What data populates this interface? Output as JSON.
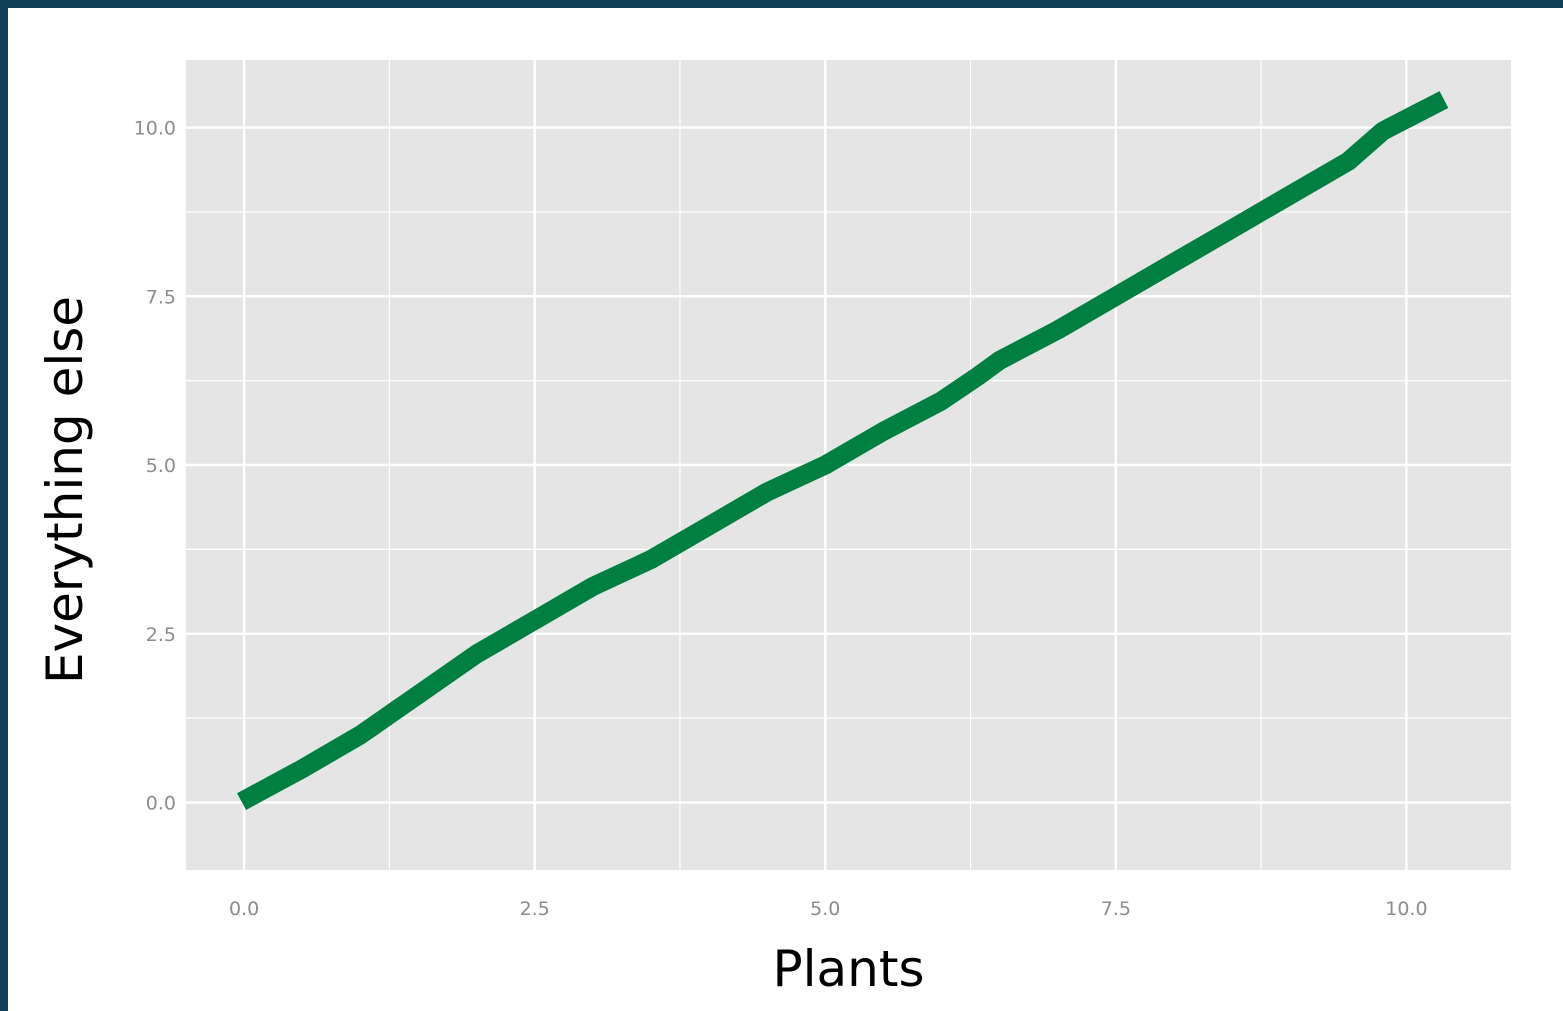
{
  "colors": {
    "frame": "#0f3f56",
    "panel": "#e5e5e5",
    "grid": "#ffffff",
    "line": "#008040",
    "tick_text": "#8c8c8c"
  },
  "chart_data": {
    "type": "line",
    "xlabel": "Plants",
    "ylabel": "Everything else",
    "xlim": [
      -0.5,
      10.9
    ],
    "ylim": [
      -1.0,
      11.0
    ],
    "x_ticks": [
      0.0,
      2.5,
      5.0,
      7.5,
      10.0
    ],
    "y_ticks": [
      0.0,
      2.5,
      5.0,
      7.5,
      10.0
    ],
    "x_tick_labels": [
      "0.0",
      "2.5",
      "5.0",
      "7.5",
      "10.0"
    ],
    "y_tick_labels": [
      "0.0",
      "2.5",
      "5.0",
      "7.5",
      "10.0"
    ],
    "grid": true,
    "series": [
      {
        "x": [
          0.05,
          0.5,
          1.0,
          1.5,
          2.0,
          2.5,
          3.0,
          3.5,
          4.0,
          4.5,
          5.0,
          5.5,
          6.0,
          6.3,
          6.5,
          7.0,
          7.5,
          8.0,
          8.5,
          9.0,
          9.5,
          9.8,
          10.25
        ],
        "y": [
          0.08,
          0.5,
          1.0,
          1.6,
          2.2,
          2.7,
          3.2,
          3.6,
          4.1,
          4.6,
          5.0,
          5.5,
          5.95,
          6.3,
          6.55,
          7.0,
          7.5,
          8.0,
          8.5,
          9.0,
          9.5,
          9.95,
          10.35
        ]
      }
    ]
  }
}
